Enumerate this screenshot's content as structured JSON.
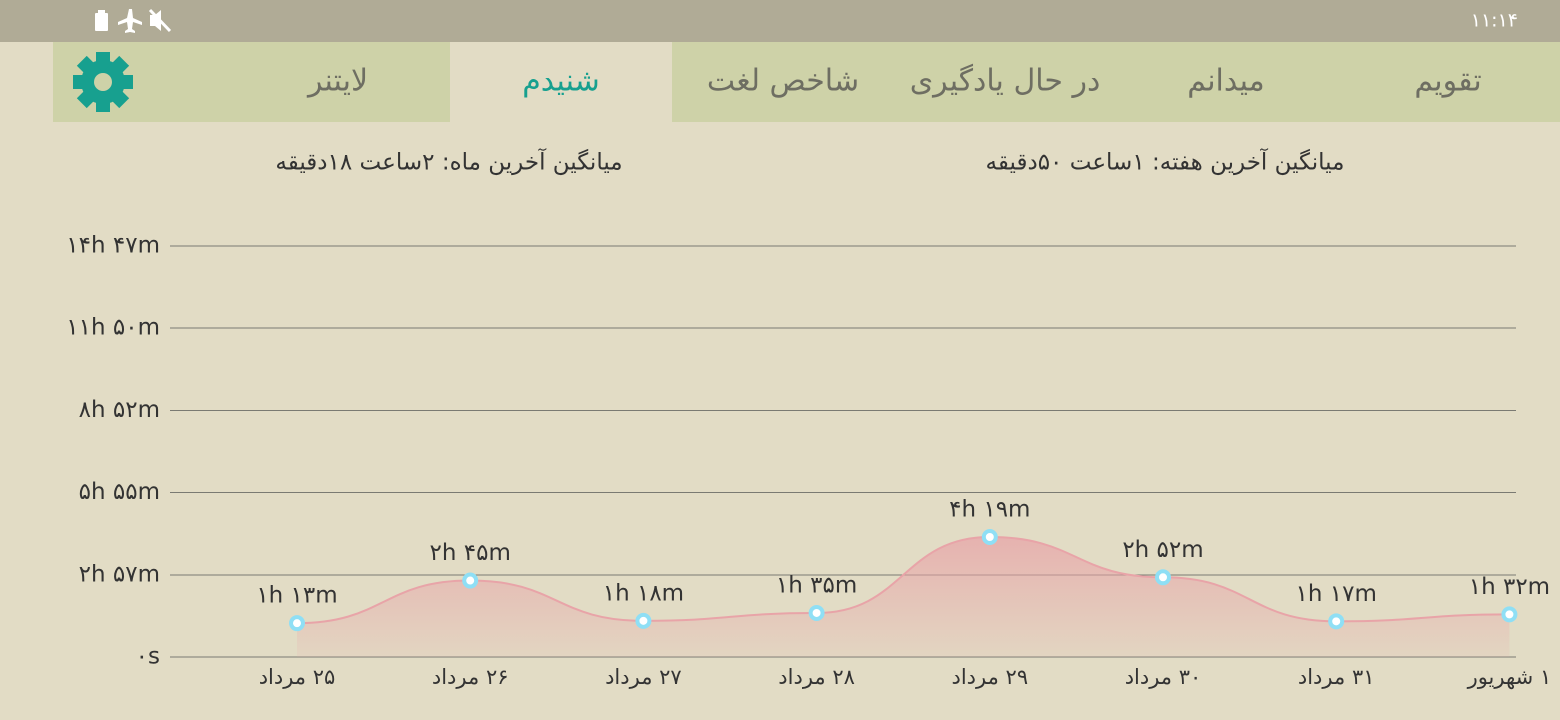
{
  "status_bar": {
    "time": "۱۱:۱۴"
  },
  "tabs": [
    {
      "label": "تقویم"
    },
    {
      "label": "میدانم"
    },
    {
      "label": "در حال یادگیری"
    },
    {
      "label": "شاخص لغت"
    },
    {
      "label": "شنیدم"
    },
    {
      "label": "لایتنر"
    }
  ],
  "stats": {
    "week": "میانگین آخرین هفته: ۱ساعت ۵۰دقیقه",
    "month": "میانگین آخرین ماه: ۲ساعت ۱۸دقیقه"
  },
  "chart_data": {
    "type": "area",
    "categories": [
      "۲۵ مرداد",
      "۲۶ مرداد",
      "۲۷ مرداد",
      "۲۸ مرداد",
      "۲۹ مرداد",
      "۳۰ مرداد",
      "۳۱ مرداد",
      "۱ شهریور"
    ],
    "values": [
      73,
      165,
      78,
      95,
      259,
      172,
      77,
      92
    ],
    "value_labels": [
      "۱h ۱۳m",
      "۲h ۴۵m",
      "۱h ۱۸m",
      "۱h ۳۵m",
      "۴h ۱۹m",
      "۲h ۵۲m",
      "۱h ۱۷m",
      "۱h ۳۲m"
    ],
    "color": "#e8a4a8",
    "ylim": [
      0,
      887
    ],
    "yticks": [
      {
        "value": 0,
        "label": "۰s"
      },
      {
        "value": 177,
        "label": "۲h ۵۷m"
      },
      {
        "value": 355,
        "label": "۵h ۵۵m"
      },
      {
        "value": 532,
        "label": "۸h ۵۲m"
      },
      {
        "value": 710,
        "label": "۱۱h ۵۰m"
      },
      {
        "value": 887,
        "label": "۱۴h ۴۷m"
      }
    ],
    "grid": true
  }
}
